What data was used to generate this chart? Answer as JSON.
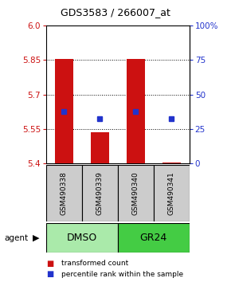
{
  "title": "GDS3583 / 266007_at",
  "samples": [
    "GSM490338",
    "GSM490339",
    "GSM490340",
    "GSM490341"
  ],
  "group_labels": [
    "DMSO",
    "GR24"
  ],
  "y_min": 5.4,
  "y_max": 6.0,
  "y_ticks_left": [
    5.4,
    5.55,
    5.7,
    5.85,
    6.0
  ],
  "y_ticks_right_labels": [
    "0",
    "25",
    "50",
    "75",
    "100%"
  ],
  "y_ticks_right_vals": [
    5.4,
    5.55,
    5.7,
    5.85,
    6.0
  ],
  "bar_values": [
    5.855,
    5.535,
    5.855,
    5.405
  ],
  "percentile_values": [
    5.625,
    5.595,
    5.625,
    5.595
  ],
  "bar_color": "#cc1111",
  "percentile_color": "#2233cc",
  "bar_base": 5.4,
  "sample_box_color": "#cccccc",
  "dmso_color": "#aaeaaa",
  "gr24_color": "#44cc44",
  "legend_bar_label": "transformed count",
  "legend_pct_label": "percentile rank within the sample"
}
